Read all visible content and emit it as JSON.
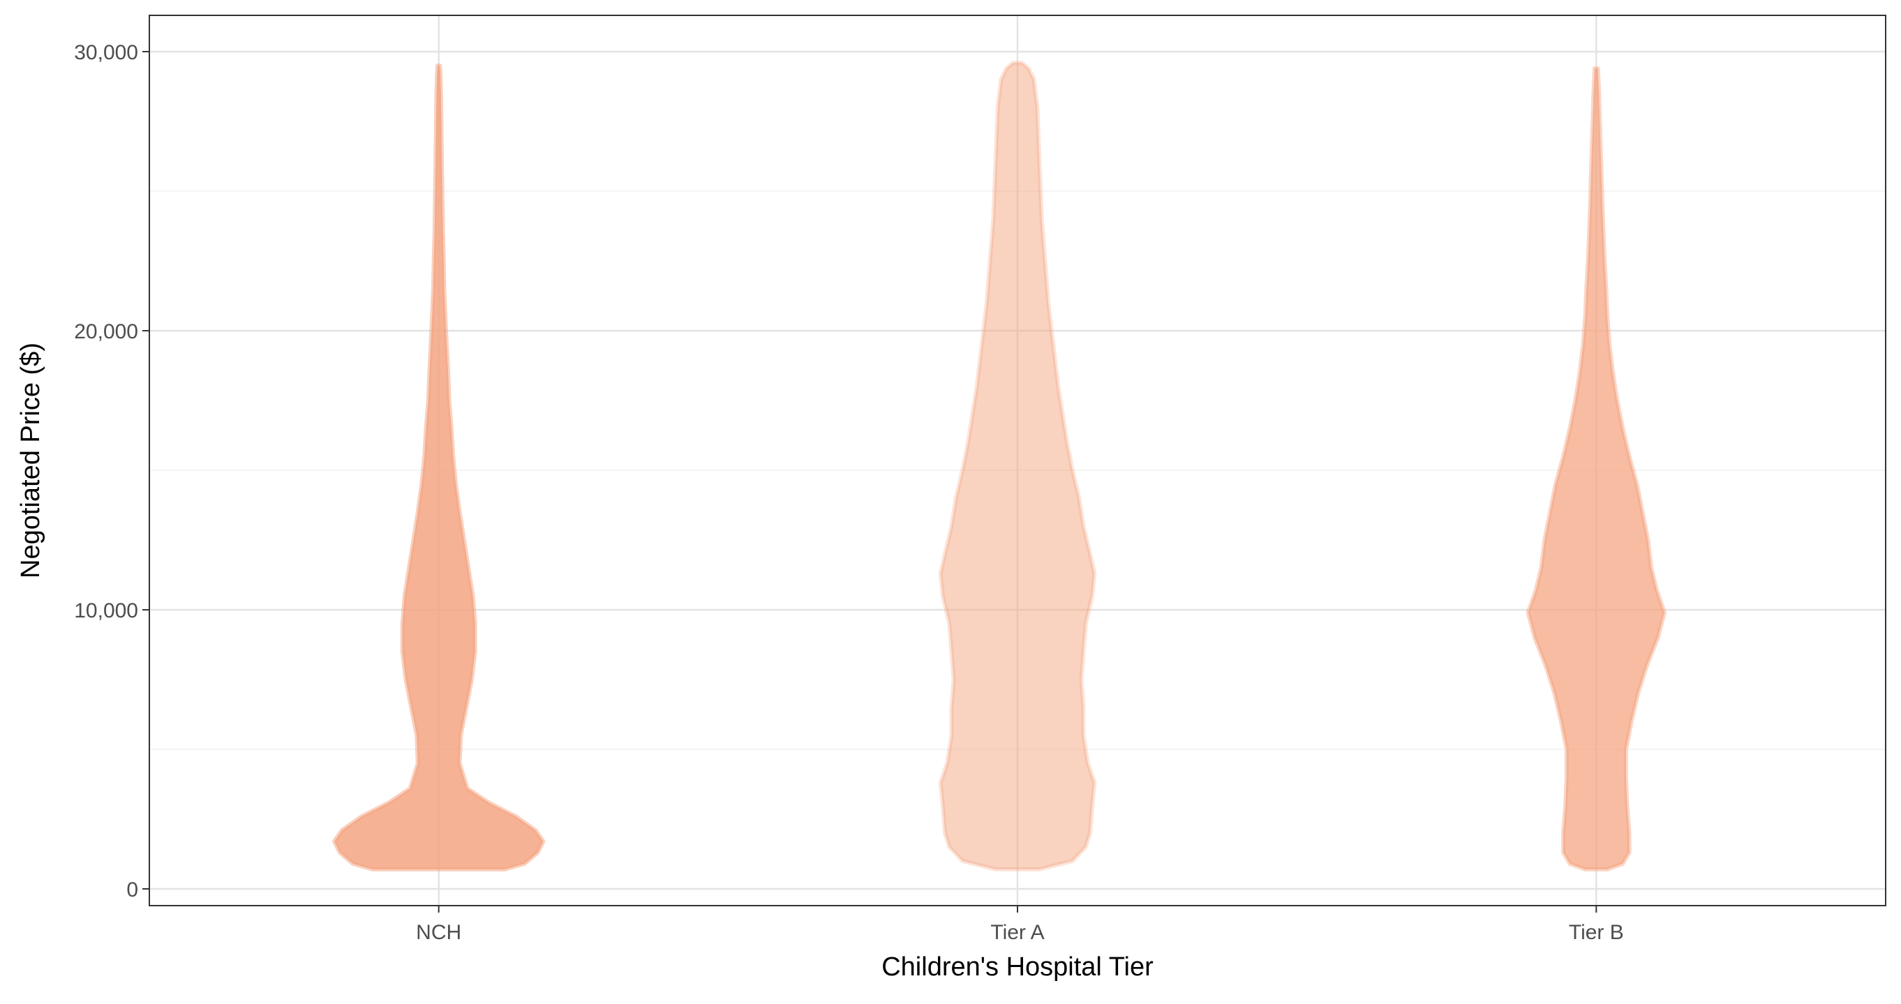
{
  "chart_data": {
    "type": "violin",
    "title": "",
    "xlabel": "Children's Hospital Tier",
    "ylabel": "Negotiated Price ($)",
    "ylim": [
      -600,
      31300
    ],
    "y_ticks": [
      0,
      10000,
      20000,
      30000
    ],
    "y_tick_labels": [
      "0",
      "10,000",
      "20,000",
      "30,000"
    ],
    "y_minor_ticks": [
      5000,
      15000,
      25000
    ],
    "grid": true,
    "theme": "bw",
    "categories": [
      "NCH",
      "Tier A",
      "Tier B"
    ],
    "fill_color": "#F4A582",
    "series": [
      {
        "category": "NCH",
        "opacity": 0.85,
        "y_min": 700,
        "y_max": 29500,
        "density_profile": [
          [
            700,
            0.6
          ],
          [
            900,
            0.78
          ],
          [
            1300,
            0.9
          ],
          [
            1700,
            0.95
          ],
          [
            2100,
            0.88
          ],
          [
            2600,
            0.7
          ],
          [
            3100,
            0.45
          ],
          [
            3600,
            0.26
          ],
          [
            4500,
            0.19
          ],
          [
            5500,
            0.2
          ],
          [
            6500,
            0.25
          ],
          [
            7500,
            0.3
          ],
          [
            8500,
            0.33
          ],
          [
            9500,
            0.33
          ],
          [
            10500,
            0.31
          ],
          [
            11500,
            0.27
          ],
          [
            12500,
            0.23
          ],
          [
            13500,
            0.19
          ],
          [
            14500,
            0.155
          ],
          [
            15500,
            0.13
          ],
          [
            16500,
            0.115
          ],
          [
            17500,
            0.095
          ],
          [
            18500,
            0.085
          ],
          [
            19500,
            0.072
          ],
          [
            20500,
            0.06
          ],
          [
            21500,
            0.05
          ],
          [
            22500,
            0.045
          ],
          [
            23500,
            0.038
          ],
          [
            24500,
            0.034
          ],
          [
            25500,
            0.03
          ],
          [
            26500,
            0.027
          ],
          [
            27500,
            0.024
          ],
          [
            28500,
            0.02
          ],
          [
            29200,
            0.015
          ],
          [
            29500,
            0.01
          ]
        ]
      },
      {
        "category": "Tier A",
        "opacity": 0.5,
        "y_min": 700,
        "y_max": 29600,
        "density_profile": [
          [
            700,
            0.2
          ],
          [
            1000,
            0.5
          ],
          [
            1500,
            0.62
          ],
          [
            2000,
            0.66
          ],
          [
            3000,
            0.68
          ],
          [
            3800,
            0.7
          ],
          [
            4500,
            0.64
          ],
          [
            5500,
            0.6
          ],
          [
            6500,
            0.6
          ],
          [
            7500,
            0.58
          ],
          [
            8500,
            0.6
          ],
          [
            9500,
            0.62
          ],
          [
            10500,
            0.68
          ],
          [
            11300,
            0.7
          ],
          [
            12000,
            0.66
          ],
          [
            13000,
            0.6
          ],
          [
            14000,
            0.56
          ],
          [
            15000,
            0.5
          ],
          [
            16000,
            0.45
          ],
          [
            17000,
            0.41
          ],
          [
            18000,
            0.37
          ],
          [
            19000,
            0.34
          ],
          [
            20000,
            0.31
          ],
          [
            21000,
            0.28
          ],
          [
            22000,
            0.26
          ],
          [
            23000,
            0.24
          ],
          [
            24000,
            0.22
          ],
          [
            25000,
            0.21
          ],
          [
            26000,
            0.2
          ],
          [
            27000,
            0.19
          ],
          [
            28000,
            0.18
          ],
          [
            29000,
            0.15
          ],
          [
            29400,
            0.1
          ],
          [
            29600,
            0.04
          ]
        ]
      },
      {
        "category": "Tier B",
        "opacity": 0.75,
        "y_min": 700,
        "y_max": 29400,
        "density_profile": [
          [
            700,
            0.1
          ],
          [
            900,
            0.24
          ],
          [
            1300,
            0.3
          ],
          [
            2000,
            0.3
          ],
          [
            3000,
            0.28
          ],
          [
            4000,
            0.27
          ],
          [
            5000,
            0.27
          ],
          [
            6000,
            0.32
          ],
          [
            7000,
            0.38
          ],
          [
            8000,
            0.46
          ],
          [
            9000,
            0.56
          ],
          [
            9900,
            0.62
          ],
          [
            10700,
            0.55
          ],
          [
            11500,
            0.5
          ],
          [
            12500,
            0.47
          ],
          [
            13500,
            0.42
          ],
          [
            14500,
            0.37
          ],
          [
            15500,
            0.3
          ],
          [
            16500,
            0.24
          ],
          [
            17500,
            0.19
          ],
          [
            18500,
            0.15
          ],
          [
            19500,
            0.12
          ],
          [
            20500,
            0.1
          ],
          [
            21500,
            0.09
          ],
          [
            22500,
            0.075
          ],
          [
            23500,
            0.065
          ],
          [
            24500,
            0.055
          ],
          [
            25500,
            0.048
          ],
          [
            26500,
            0.04
          ],
          [
            27500,
            0.032
          ],
          [
            28500,
            0.025
          ],
          [
            29400,
            0.015
          ]
        ]
      }
    ]
  }
}
